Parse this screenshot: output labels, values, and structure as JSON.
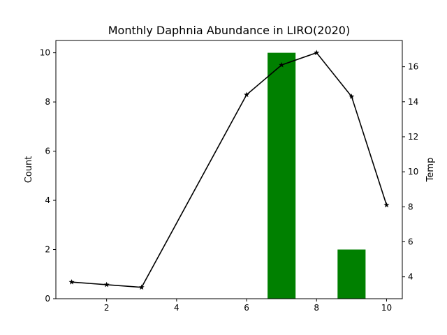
{
  "chart_data": {
    "type": "bar+line",
    "title": "Monthly Daphnia Abundance in LIRO(2020)",
    "xlabel": "",
    "ylabel_left": "Count",
    "ylabel_right": "Temp",
    "xlim": [
      0.55,
      10.45
    ],
    "ylim_left": [
      0,
      10.5
    ],
    "ylim_right": [
      2.75,
      17.5
    ],
    "x_ticks": [
      2,
      4,
      6,
      8,
      10
    ],
    "y_left_ticks": [
      0,
      2,
      4,
      6,
      8,
      10
    ],
    "y_right_ticks": [
      4,
      6,
      8,
      10,
      12,
      14,
      16
    ],
    "grid": false,
    "bar_series": {
      "axis": "left",
      "color": "#008000",
      "bar_width": 0.8,
      "x": [
        7,
        9
      ],
      "values": [
        10,
        2
      ]
    },
    "line_series": {
      "axis": "right",
      "color": "#000000",
      "marker": "star",
      "x": [
        1,
        2,
        3,
        6,
        7,
        8,
        9,
        10
      ],
      "values": [
        3.7,
        3.55,
        3.4,
        14.4,
        16.1,
        16.8,
        14.3,
        8.1
      ]
    }
  }
}
